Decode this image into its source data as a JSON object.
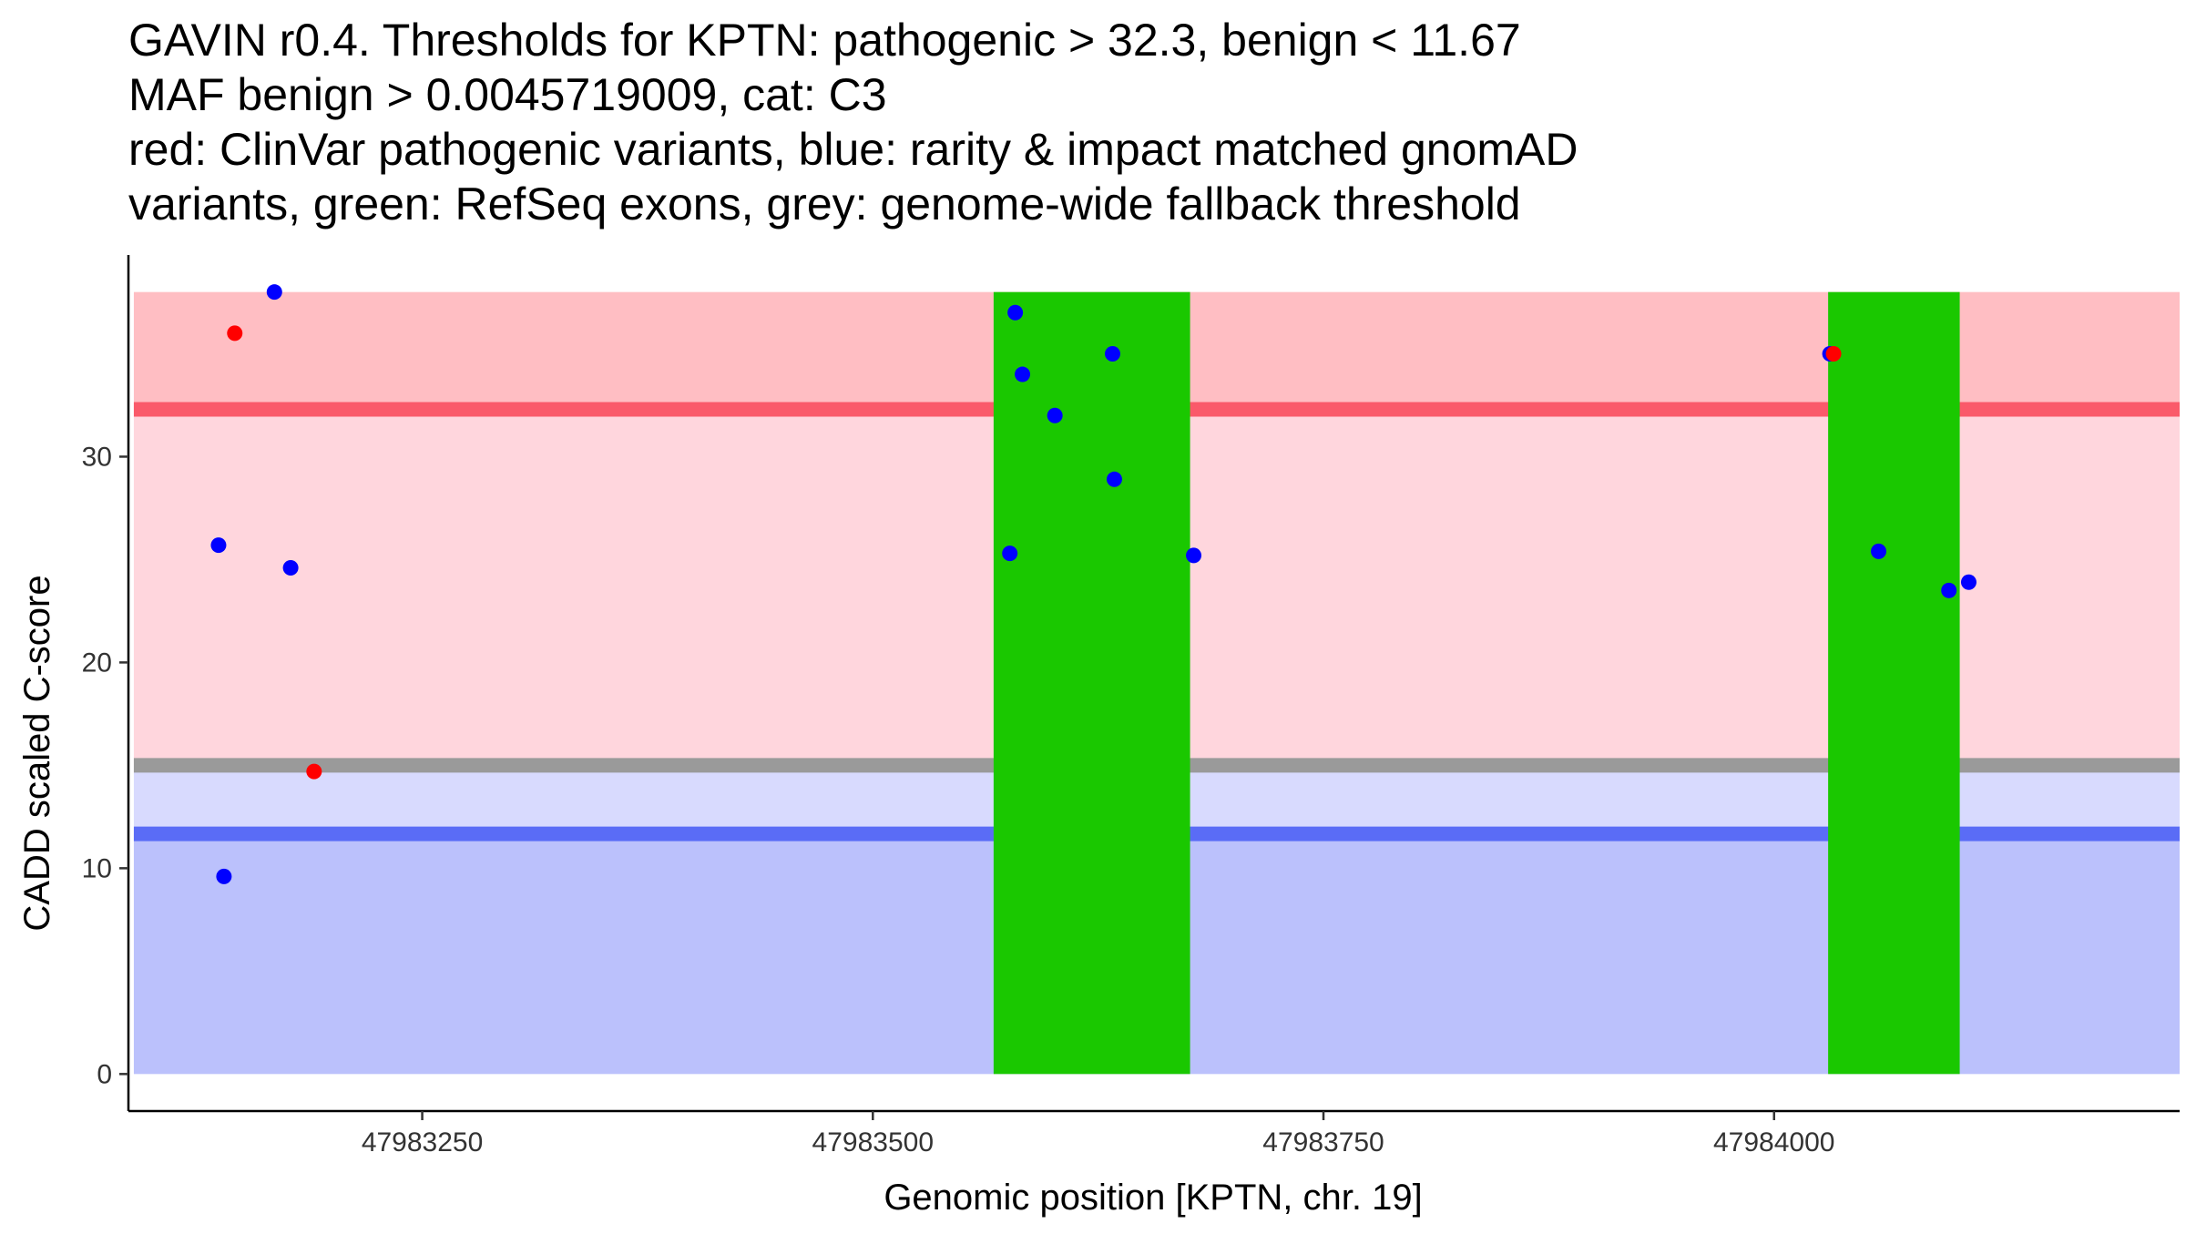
{
  "chart_data": {
    "type": "scatter",
    "title_lines": [
      "GAVIN r0.4. Thresholds for KPTN: pathogenic > 32.3, benign < 11.67",
      "MAF benign > 0.0045719009, cat: C3",
      "red: ClinVar pathogenic variants, blue: rarity & impact matched gnomAD",
      "variants, green: RefSeq exons, grey: genome-wide fallback threshold"
    ],
    "xlabel": "Genomic position [KPTN, chr. 19]",
    "ylabel": "CADD scaled C-score",
    "xlim": [
      47983087,
      47984225
    ],
    "ylim": [
      -1.8,
      39.8
    ],
    "x_ticks": [
      47983250,
      47983500,
      47983750,
      47984000
    ],
    "x_tick_labels": [
      "47983250",
      "47983500",
      "47983750",
      "47984000"
    ],
    "y_ticks": [
      0,
      10,
      20,
      30
    ],
    "y_tick_labels": [
      "0",
      "10",
      "20",
      "30"
    ],
    "region_x": [
      47983090,
      47984225
    ],
    "thresholds": {
      "pathogenic": 32.3,
      "benign": 11.67,
      "fallback": 15.0,
      "max": 38.0,
      "min": 0
    },
    "exons": [
      {
        "start": 47983567,
        "end": 47983676
      },
      {
        "start": 47984030,
        "end": 47984103
      }
    ],
    "series": [
      {
        "name": "gnomAD",
        "color": "#0000ff",
        "points": [
          {
            "x": 47983137,
            "y": 25.7
          },
          {
            "x": 47983140,
            "y": 9.6
          },
          {
            "x": 47983168,
            "y": 38.0
          },
          {
            "x": 47983177,
            "y": 24.6
          },
          {
            "x": 47983576,
            "y": 25.3
          },
          {
            "x": 47983579,
            "y": 37.0
          },
          {
            "x": 47983583,
            "y": 34.0
          },
          {
            "x": 47983601,
            "y": 32.0
          },
          {
            "x": 47983633,
            "y": 35.0
          },
          {
            "x": 47983634,
            "y": 28.9
          },
          {
            "x": 47983678,
            "y": 25.2
          },
          {
            "x": 47984031,
            "y": 35.0
          },
          {
            "x": 47984058,
            "y": 25.4
          },
          {
            "x": 47984097,
            "y": 23.5
          },
          {
            "x": 47984108,
            "y": 23.9
          }
        ]
      },
      {
        "name": "ClinVar",
        "color": "#ff0000",
        "points": [
          {
            "x": 47983146,
            "y": 36.0
          },
          {
            "x": 47983190,
            "y": 14.7
          },
          {
            "x": 47984033,
            "y": 35.0
          }
        ]
      }
    ],
    "colors": {
      "pathogenic_band": "#ffbec3",
      "pathogenic_line": "#fa5a6a",
      "mid_band": "#ffd6dd",
      "fallback_line": "#9a9a9a",
      "benign_light_band": "#d8dafe",
      "benign_line": "#5a6cf6",
      "benign_band": "#bbc1fc",
      "exon": "#1ac800"
    }
  }
}
